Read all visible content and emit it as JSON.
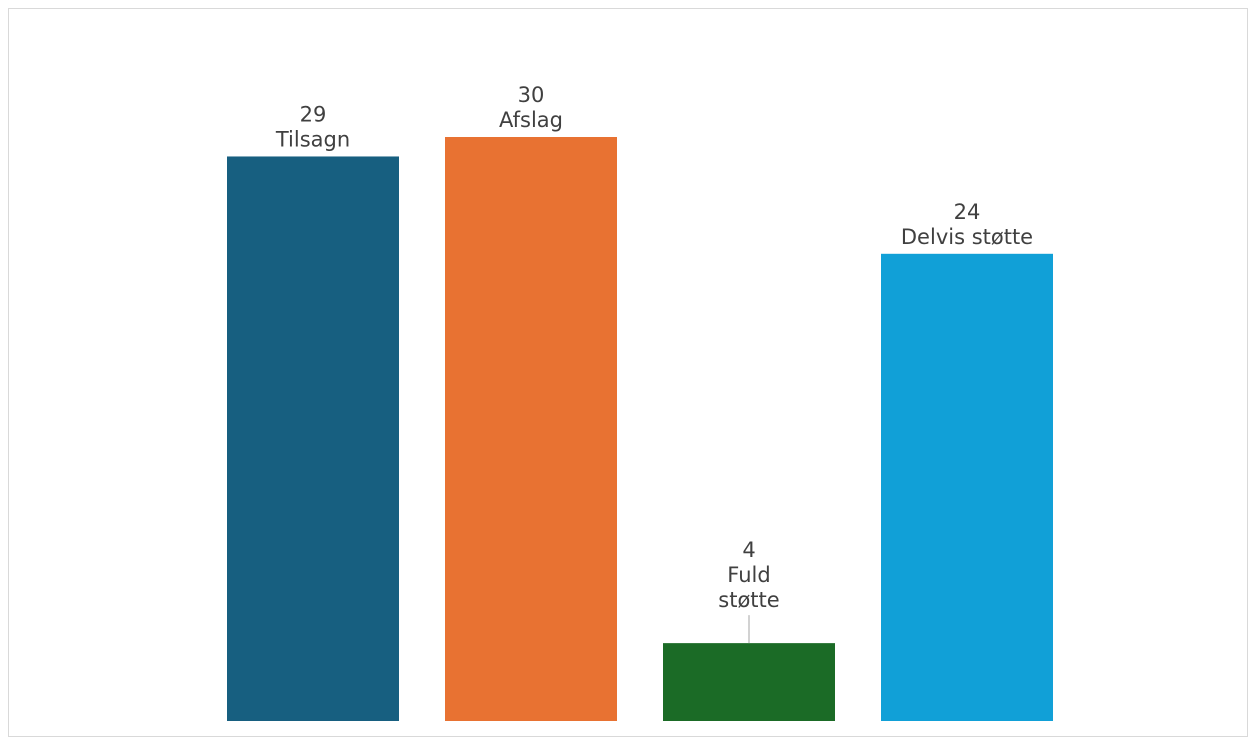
{
  "chart_data": {
    "type": "bar",
    "title": "",
    "xlabel": "",
    "ylabel": "",
    "ylim": [
      0,
      30
    ],
    "grid": false,
    "legend": "none",
    "categories": [
      "Tilsagn",
      "Afslag",
      "Fuld støtte",
      "Delvis støtte"
    ],
    "values": [
      29,
      30,
      4,
      24
    ],
    "colors": [
      "#175f80",
      "#e87232",
      "#1b6b26",
      "#11a0d7"
    ],
    "data_labels": [
      {
        "value": "29",
        "category_lines": [
          "Tilsagn"
        ]
      },
      {
        "value": "30",
        "category_lines": [
          "Afslag"
        ]
      },
      {
        "value": "4",
        "category_lines": [
          "Fuld",
          "støtte"
        ]
      },
      {
        "value": "24",
        "category_lines": [
          "Delvis støtte"
        ]
      }
    ]
  }
}
